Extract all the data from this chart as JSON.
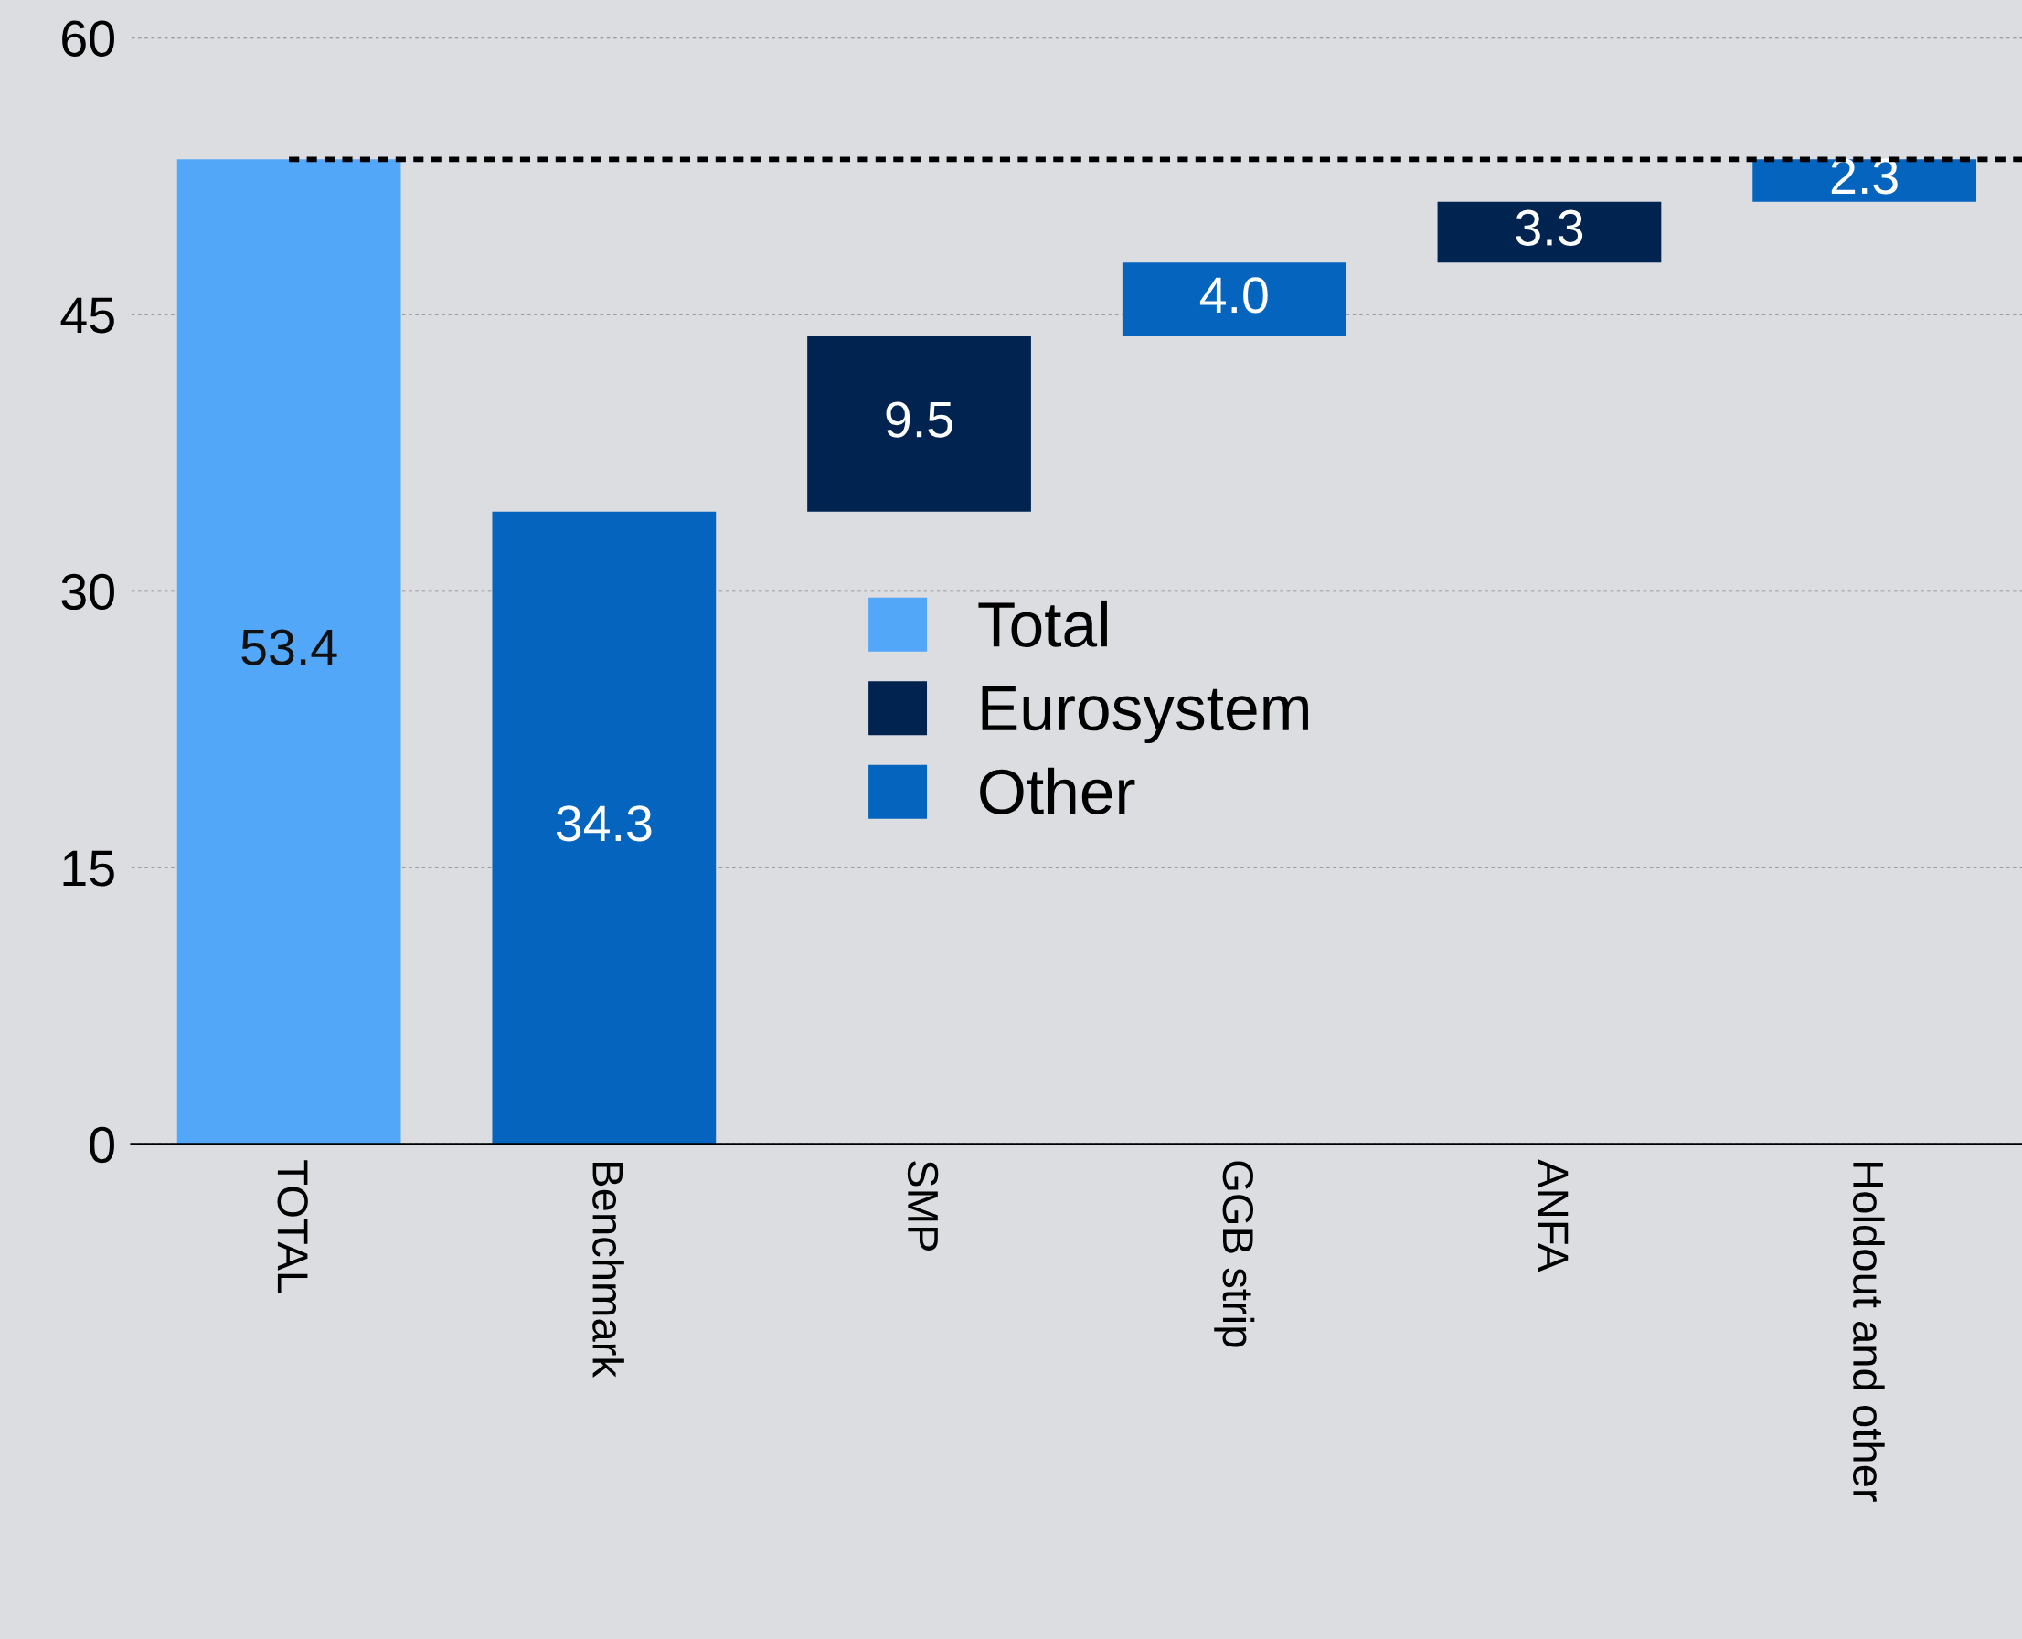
{
  "chart_data": {
    "type": "bar",
    "categories": [
      "TOTAL",
      "Benchmark",
      "SMP",
      "GGB strip",
      "ANFA",
      "Holdout and other"
    ],
    "series": [
      {
        "name": "Total",
        "color": "#53a7f8",
        "values": [
          53.4,
          null,
          null,
          null,
          null,
          null
        ],
        "value_labels": [
          "53.4",
          null,
          null,
          null,
          null,
          null
        ],
        "base": [
          0,
          null,
          null,
          null,
          null,
          null
        ]
      },
      {
        "name": "Eurosystem",
        "color": "#00234f",
        "values": [
          null,
          null,
          9.5,
          null,
          3.3,
          null
        ],
        "value_labels": [
          null,
          null,
          "9.5",
          null,
          "3.3",
          null
        ],
        "base": [
          null,
          null,
          34.3,
          null,
          47.8,
          null
        ]
      },
      {
        "name": "Other",
        "color": "#0464be",
        "values": [
          null,
          34.3,
          null,
          4.0,
          null,
          2.3
        ],
        "value_labels": [
          null,
          "34.3",
          null,
          "4.0",
          null,
          "2.3"
        ],
        "base": [
          null,
          0,
          null,
          43.8,
          null,
          51.1
        ]
      }
    ],
    "ylim": [
      0,
      60
    ],
    "yticks": [
      0,
      15,
      30,
      45,
      60
    ],
    "grid": "y",
    "legend": "center",
    "ref_lines": [
      {
        "axis": "y",
        "value": 53.4,
        "color": "#000000",
        "line_style": "dashed"
      }
    ]
  }
}
